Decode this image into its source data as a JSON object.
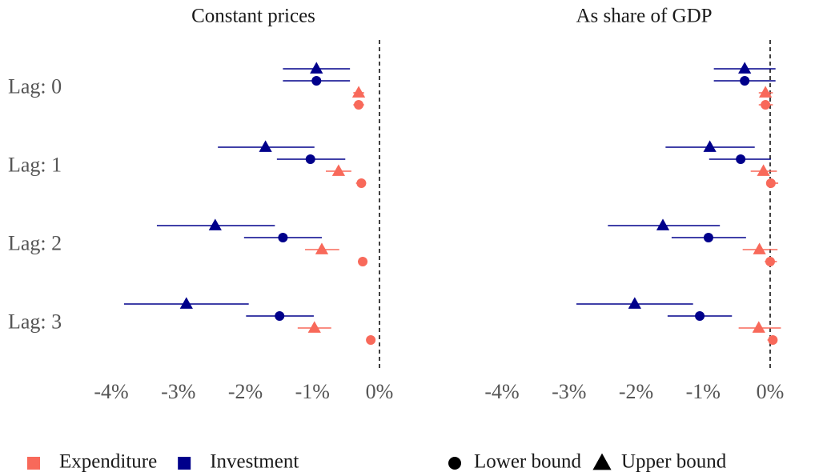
{
  "chart_data": [
    {
      "type": "errorbar",
      "title": "Constant prices",
      "categories": [
        "Lag: 0",
        "Lag: 1",
        "Lag: 2",
        "Lag: 3"
      ],
      "xlim": [
        -4.2,
        0.2
      ],
      "xticks": [
        {
          "value": -4,
          "label": "-4%"
        },
        {
          "value": -3,
          "label": "-3%"
        },
        {
          "value": -2,
          "label": "-2%"
        },
        {
          "value": -1,
          "label": "-1%"
        },
        {
          "value": 0,
          "label": "0%"
        }
      ],
      "series": [
        {
          "color": "#00008b",
          "marker": "triangle",
          "values": [
            -0.94,
            -1.7,
            -2.45,
            -2.88
          ],
          "lower": [
            -1.44,
            -2.41,
            -3.32,
            -3.81
          ],
          "upper": [
            -0.44,
            -0.97,
            -1.56,
            -1.95
          ]
        },
        {
          "color": "#00008b",
          "marker": "circle",
          "values": [
            -0.94,
            -1.03,
            -1.44,
            -1.49
          ],
          "lower": [
            -1.44,
            -1.53,
            -2.02,
            -1.99
          ],
          "upper": [
            -0.44,
            -0.51,
            -0.86,
            -0.98
          ]
        },
        {
          "color": "#f8695a",
          "marker": "triangle",
          "values": [
            -0.31,
            -0.61,
            -0.86,
            -0.97
          ],
          "lower": [
            -0.39,
            -0.8,
            -1.11,
            -1.22
          ],
          "upper": [
            -0.23,
            -0.42,
            -0.6,
            -0.72
          ]
        },
        {
          "color": "#f8695a",
          "marker": "circle",
          "values": [
            -0.31,
            -0.27,
            -0.25,
            -0.13
          ],
          "lower": [
            -0.39,
            -0.35,
            -0.32,
            -0.19
          ],
          "upper": [
            -0.23,
            -0.2,
            -0.18,
            -0.07
          ]
        }
      ]
    },
    {
      "type": "errorbar",
      "title": "As share of GDP",
      "xlim": [
        -4.2,
        0.2
      ],
      "xticks": [
        {
          "value": -4,
          "label": "-4%"
        },
        {
          "value": -3,
          "label": "-3%"
        },
        {
          "value": -2,
          "label": "-2%"
        },
        {
          "value": -1,
          "label": "-1%"
        },
        {
          "value": 0,
          "label": "0%"
        }
      ],
      "series": [
        {
          "color": "#00008b",
          "marker": "triangle",
          "values": [
            -0.38,
            -0.9,
            -1.6,
            -2.02
          ],
          "lower": [
            -0.84,
            -1.56,
            -2.42,
            -2.89
          ],
          "upper": [
            0.08,
            -0.23,
            -0.75,
            -1.15
          ]
        },
        {
          "color": "#00008b",
          "marker": "circle",
          "values": [
            -0.38,
            -0.44,
            -0.92,
            -1.05
          ],
          "lower": [
            -0.84,
            -0.91,
            -1.47,
            -1.53
          ],
          "upper": [
            0.08,
            0.01,
            -0.36,
            -0.57
          ]
        },
        {
          "color": "#f8695a",
          "marker": "triangle",
          "values": [
            -0.07,
            -0.1,
            -0.16,
            -0.17
          ],
          "lower": [
            -0.17,
            -0.29,
            -0.41,
            -0.47
          ],
          "upper": [
            0.04,
            0.1,
            0.11,
            0.16
          ]
        },
        {
          "color": "#f8695a",
          "marker": "circle",
          "values": [
            -0.07,
            0.01,
            0.0,
            0.04
          ],
          "lower": [
            -0.17,
            -0.06,
            -0.08,
            -0.04
          ],
          "upper": [
            0.04,
            0.12,
            0.1,
            0.1
          ]
        }
      ]
    }
  ],
  "legend": {
    "colors": [
      {
        "name": "Expenditure",
        "color": "#f8695a"
      },
      {
        "name": "Investment",
        "color": "#00008b"
      }
    ],
    "markers": [
      {
        "name": "Lower bound",
        "marker": "circle"
      },
      {
        "name": "Upper bound",
        "marker": "triangle"
      }
    ]
  }
}
